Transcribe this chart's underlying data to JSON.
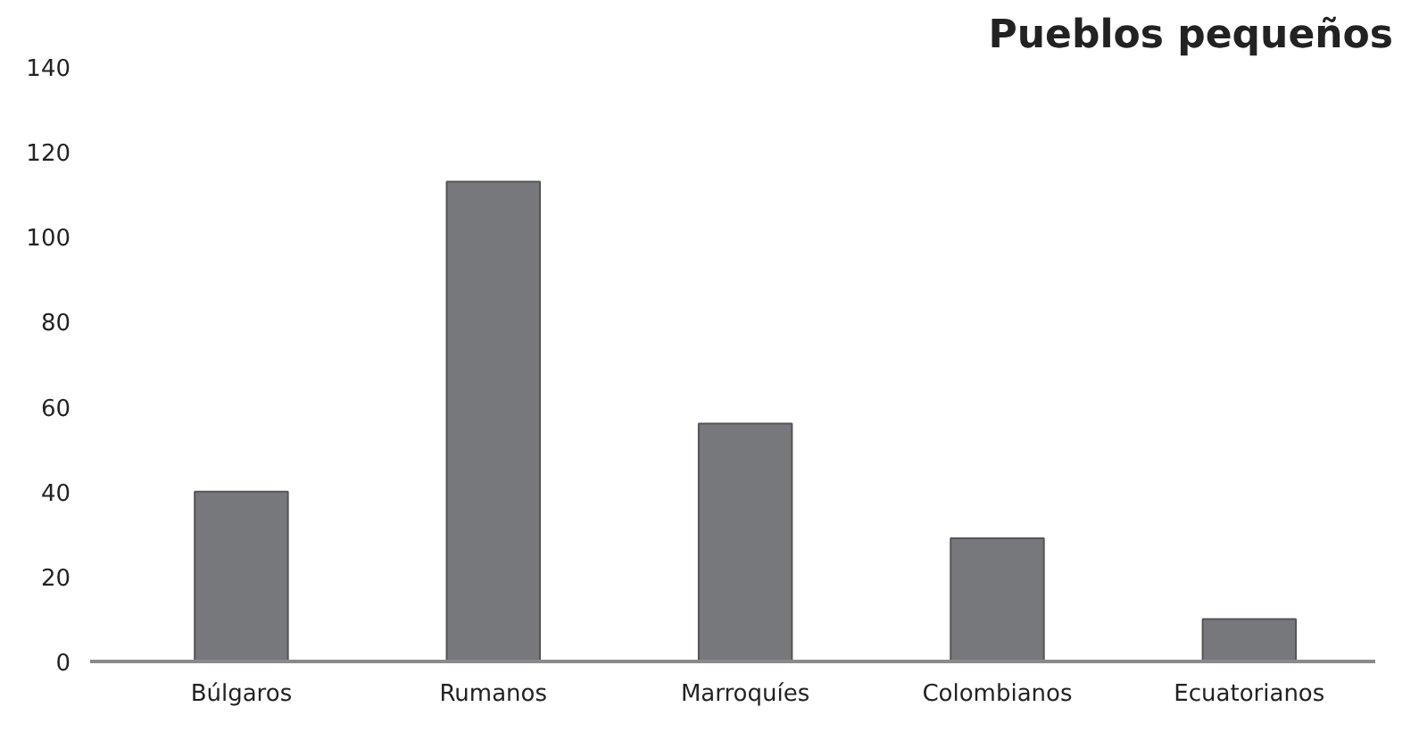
{
  "chart_data": {
    "type": "bar",
    "title": "Pueblos pequeños",
    "categories": [
      "Búlgaros",
      "Rumanos",
      "Marroquíes",
      "Colombianos",
      "Ecuatorianos"
    ],
    "values": [
      40,
      113,
      56,
      29,
      10
    ],
    "color": "#77787b",
    "ylim": [
      0,
      140
    ],
    "yticks": [
      0,
      20,
      40,
      60,
      80,
      100,
      120,
      140
    ],
    "grid": false
  }
}
